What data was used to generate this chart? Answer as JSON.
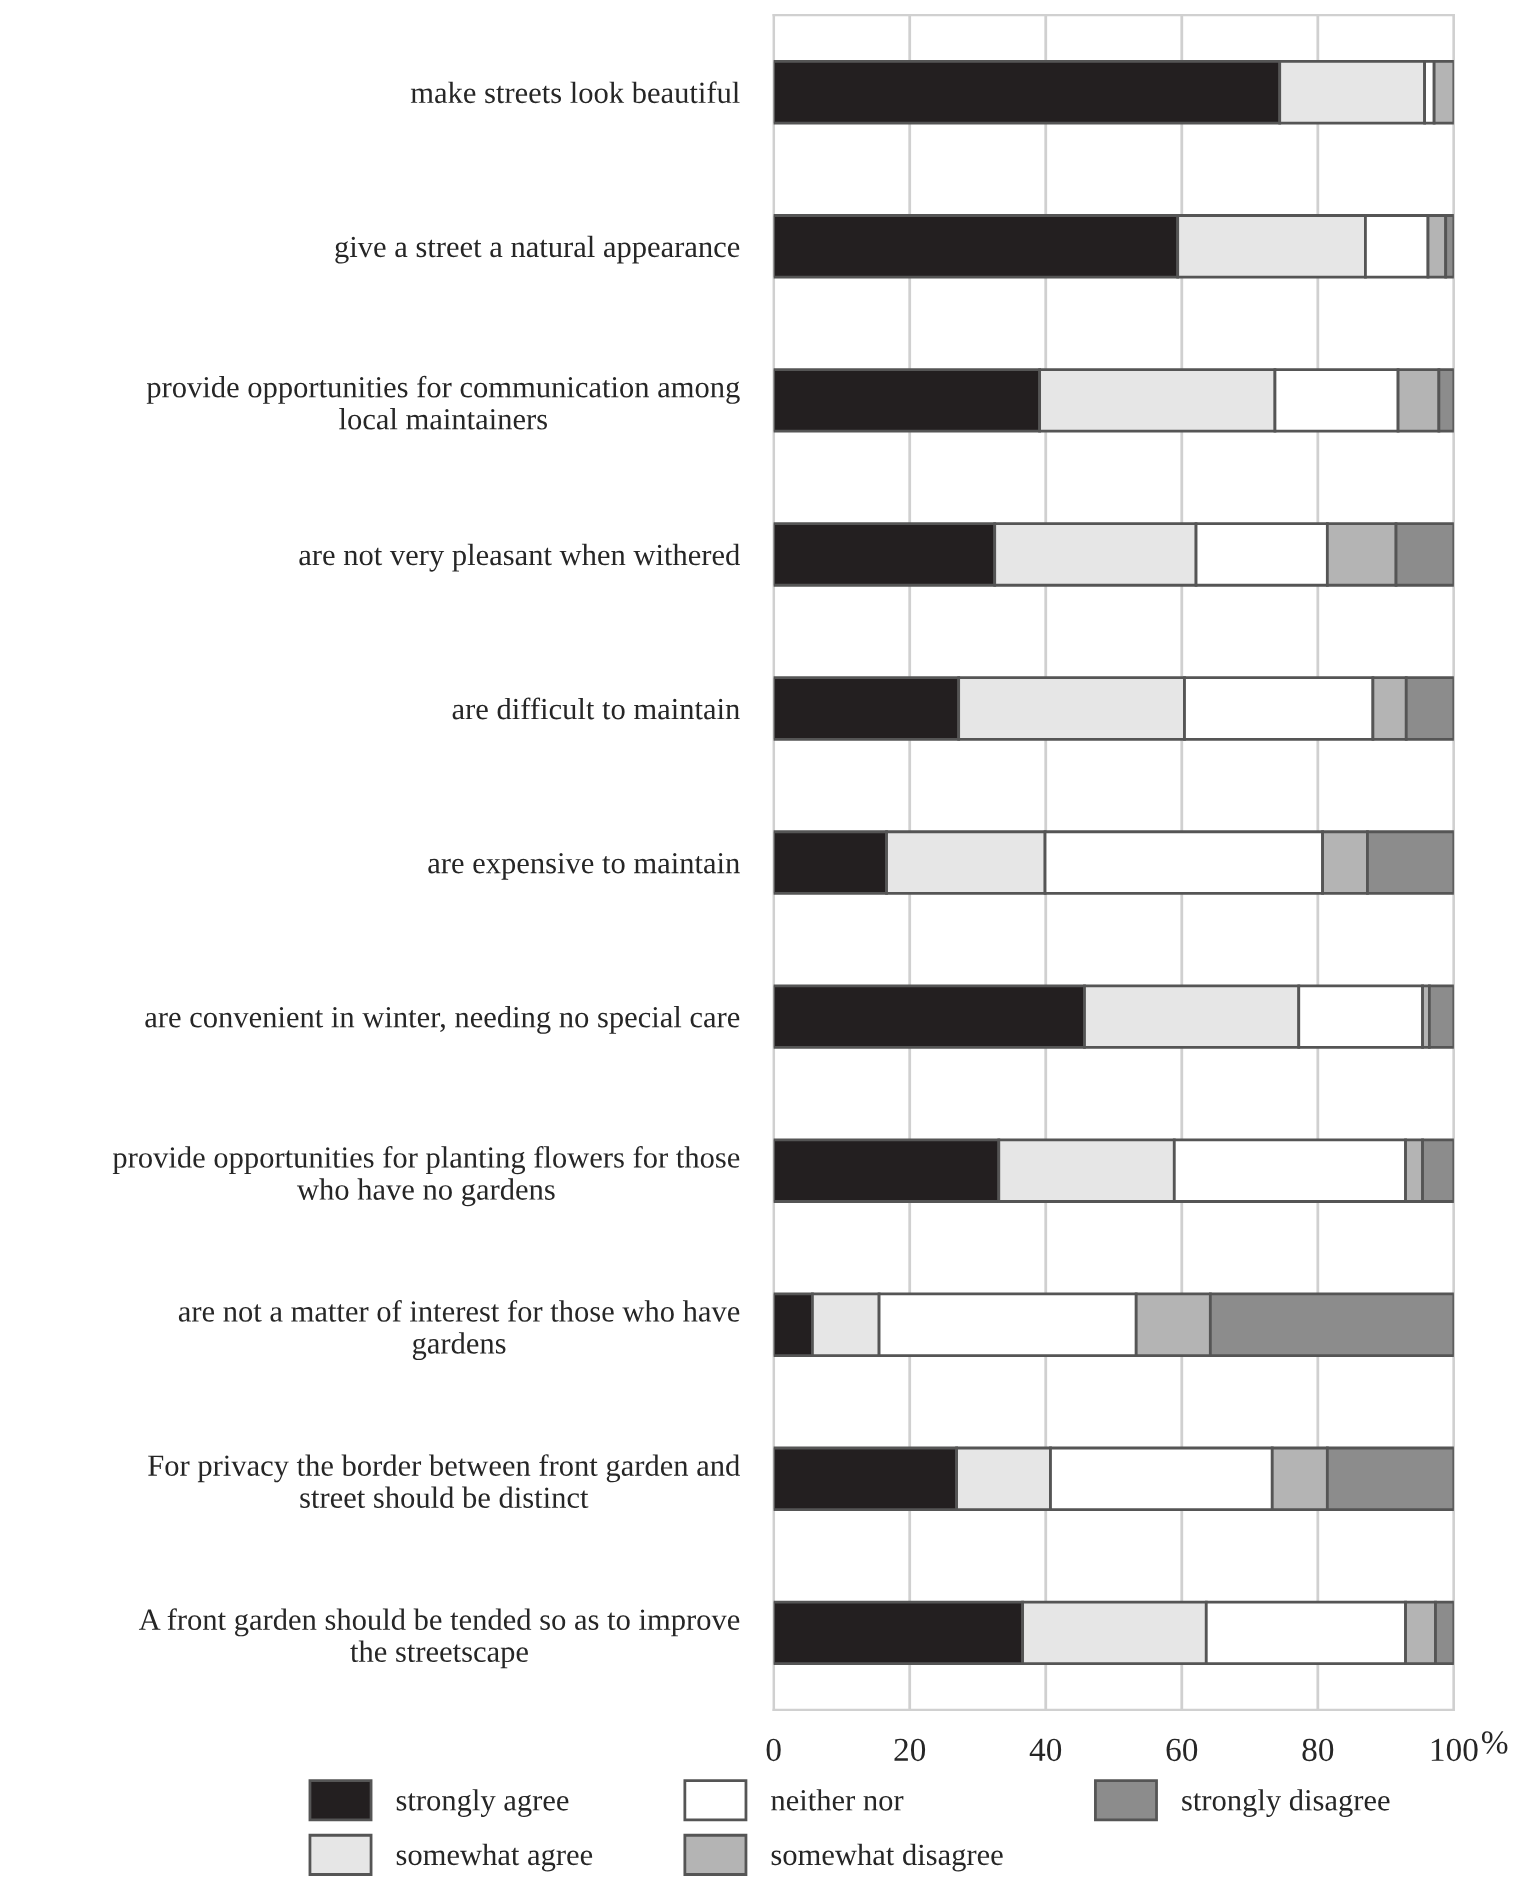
{
  "chart_data": {
    "type": "bar",
    "orientation": "horizontal",
    "stacked": true,
    "categories": [
      "make streets look beautiful",
      "give a street a natural appearance",
      "provide opportunities for communication among\nlocal maintainers",
      "are not very pleasant when withered",
      "are difficult to maintain",
      "are expensive to maintain",
      "are convenient in winter, needing no special care",
      "provide opportunities for planting flowers for those\nwho have no gardens",
      "are not a matter of interest for those who have\ngardens",
      "For privacy the border between front garden and\nstreet should be distinct",
      "A front garden should be tended so as to improve\nthe streetscape"
    ],
    "series": [
      {
        "name": "strongly agree",
        "color": "#231f20",
        "values": [
          74.4,
          59.4,
          39.1,
          32.5,
          27.2,
          16.6,
          45.7,
          33.1,
          5.7,
          26.9,
          36.6
        ]
      },
      {
        "name": "somewhat agree",
        "color": "#e6e6e6",
        "values": [
          21.3,
          27.6,
          34.6,
          29.6,
          33.2,
          23.3,
          31.5,
          25.8,
          9.8,
          13.8,
          27.0
        ]
      },
      {
        "name": "neither nor",
        "color": "#ffffff",
        "values": [
          1.4,
          9.2,
          18.1,
          19.3,
          27.7,
          40.8,
          18.2,
          34.0,
          37.8,
          32.6,
          29.3
        ]
      },
      {
        "name": "somewhat disagree",
        "color": "#b4b4b4",
        "values": [
          2.9,
          2.6,
          6.0,
          10.1,
          4.9,
          6.6,
          1.0,
          2.5,
          10.9,
          8.1,
          4.4
        ]
      },
      {
        "name": "strongly disagree",
        "color": "#8c8c8c",
        "values": [
          null,
          1.2,
          2.2,
          8.5,
          7.0,
          12.7,
          3.6,
          4.6,
          35.8,
          18.6,
          2.7
        ]
      }
    ],
    "xlabel": "%",
    "xlim": [
      0,
      100
    ],
    "xticks": [
      0,
      20,
      40,
      60,
      80,
      100
    ],
    "grid": "x",
    "legend": "bottom"
  }
}
